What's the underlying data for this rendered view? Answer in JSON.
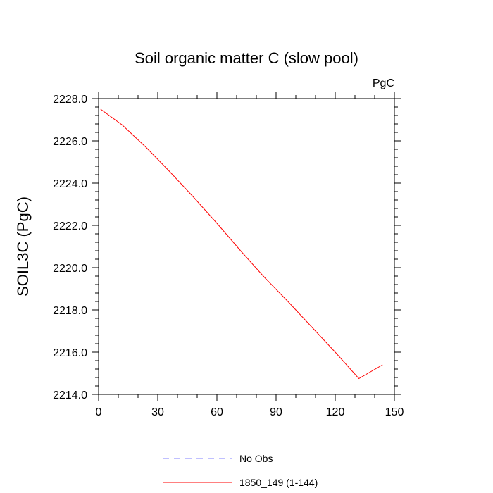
{
  "chart_data": {
    "type": "line",
    "title": "Soil organic matter C (slow pool)",
    "units_label": "PgC",
    "xlabel": "",
    "ylabel": "SOIL3C  (PgC)",
    "xlim": [
      0,
      150
    ],
    "ylim": [
      2214.0,
      2228.0
    ],
    "xticks": [
      0,
      30,
      60,
      90,
      120,
      150
    ],
    "xtick_labels": [
      "0",
      "30",
      "60",
      "90",
      "120",
      "150"
    ],
    "yticks": [
      2214.0,
      2216.0,
      2218.0,
      2220.0,
      2222.0,
      2224.0,
      2226.0,
      2228.0
    ],
    "ytick_labels": [
      "2214.0",
      "2216.0",
      "2218.0",
      "2220.0",
      "2222.0",
      "2224.0",
      "2226.0",
      "2228.0"
    ],
    "grid": false,
    "legend_position": "bottom",
    "series": [
      {
        "name": "No Obs",
        "color": "#8080ff",
        "dash": "dashed",
        "x": [],
        "y": []
      },
      {
        "name": "1850_149 (1-144)",
        "color": "#ff0000",
        "dash": "solid",
        "x": [
          1,
          12,
          24,
          36,
          48,
          60,
          72,
          84,
          96,
          108,
          120,
          132,
          144
        ],
        "y": [
          2227.5,
          2226.75,
          2225.7,
          2224.55,
          2223.35,
          2222.1,
          2220.8,
          2219.55,
          2218.4,
          2217.2,
          2216.0,
          2214.75,
          2215.4
        ]
      }
    ]
  }
}
